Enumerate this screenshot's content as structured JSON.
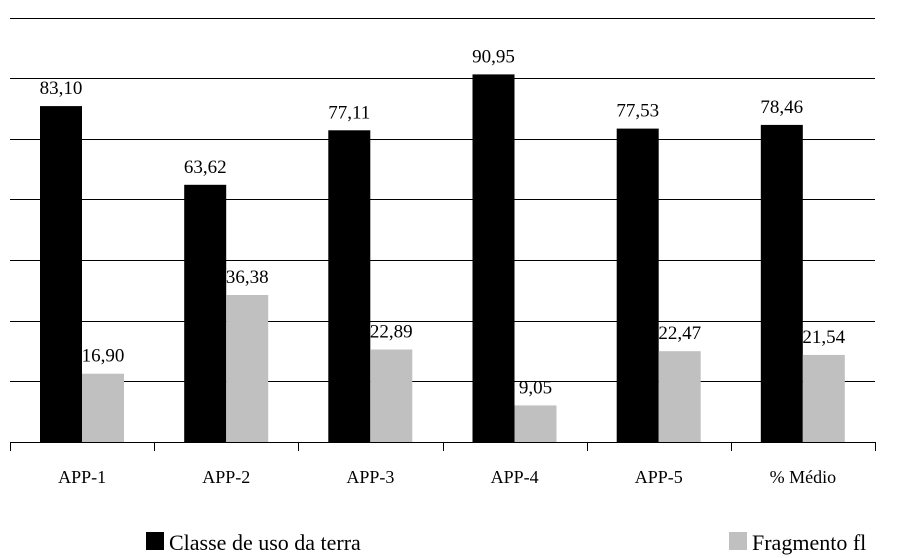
{
  "chart_data": {
    "type": "bar",
    "title": "",
    "xlabel": "",
    "ylabel": "",
    "categories": [
      "APP-1",
      "APP-2",
      "APP-3",
      "APP-4",
      "APP-5",
      "% Médio"
    ],
    "series": [
      {
        "name": "Classe de uso da terra",
        "color": "#000000",
        "values": [
          83.1,
          63.62,
          77.11,
          90.95,
          77.53,
          78.46
        ],
        "labels": [
          "83,10",
          "63,62",
          "77,11",
          "90,95",
          "77,53",
          "78,46"
        ]
      },
      {
        "name": "Fragmento fl",
        "color": "#c0c0c0",
        "values": [
          16.9,
          36.38,
          22.89,
          9.05,
          22.47,
          21.54
        ],
        "labels": [
          "16,90",
          "36,38",
          "22,89",
          "9,05",
          "22,47",
          "21,54"
        ]
      }
    ],
    "ylim": [
      0,
      105
    ],
    "gridlines": [
      0,
      15,
      30,
      45,
      60,
      75,
      90,
      105
    ],
    "grid": true,
    "y_tick_labels": false,
    "legend_position": "bottom"
  }
}
